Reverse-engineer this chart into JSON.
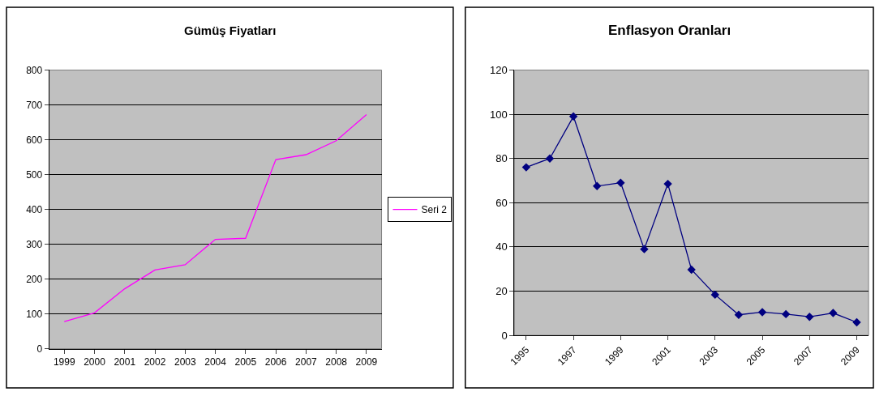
{
  "chart_data": [
    {
      "type": "line",
      "title": "Gümüş Fiyatları",
      "categories": [
        "1999",
        "2000",
        "2001",
        "2002",
        "2003",
        "2004",
        "2005",
        "2006",
        "2007",
        "2008",
        "2009"
      ],
      "series": [
        {
          "name": "Seri 2",
          "color": "#ff00ff",
          "values": [
            78,
            103,
            172,
            226,
            241,
            314,
            317,
            543,
            557,
            597,
            672
          ]
        }
      ],
      "ylim": [
        0,
        800
      ],
      "yticks": [
        0,
        100,
        200,
        300,
        400,
        500,
        600,
        700,
        800
      ],
      "grid": "y",
      "legend": "right",
      "marker": "none"
    },
    {
      "type": "line",
      "title": "Enflasyon Oranları",
      "categories": [
        "1995",
        null,
        "1997",
        null,
        "1999",
        null,
        "2001",
        null,
        "2003",
        null,
        "2005",
        null,
        "2007",
        null,
        "2009"
      ],
      "series": [
        {
          "color": "#000080",
          "values": [
            76,
            80,
            99,
            67.5,
            69,
            39,
            68.5,
            29.7,
            18.4,
            9.3,
            10.5,
            9.6,
            8.4,
            10.1,
            5.9
          ]
        }
      ],
      "ylim": [
        0,
        120
      ],
      "yticks": [
        0,
        20,
        40,
        60,
        80,
        100,
        120
      ],
      "grid": "y",
      "marker": "diamond"
    }
  ]
}
